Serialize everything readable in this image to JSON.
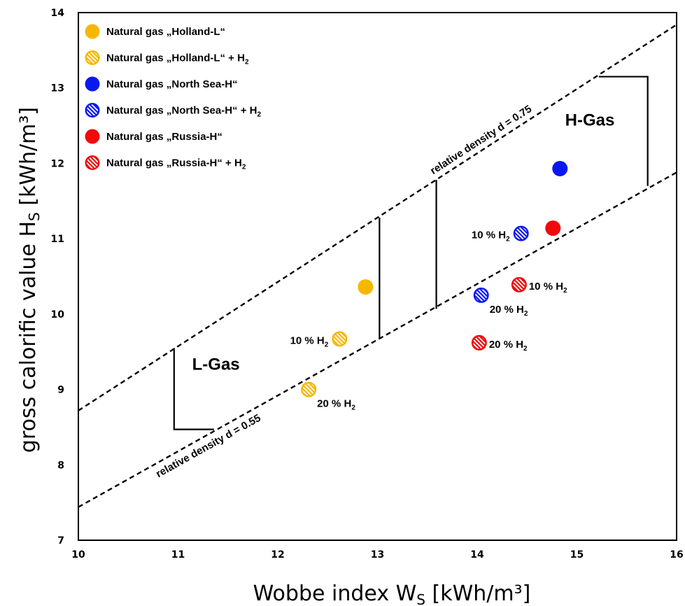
{
  "chart_data": {
    "type": "scatter",
    "xlabel": "Wobbe index W",
    "xlabel_sub": "S",
    "xlabel_unit": " [kWh/m³]",
    "ylabel": "gross calorific value H",
    "ylabel_sub": "S",
    "ylabel_unit": " [kWh/m³]",
    "xlim": [
      10,
      16
    ],
    "ylim": [
      7,
      14
    ],
    "x_ticks": [
      "10",
      "11",
      "12",
      "13",
      "14",
      "15",
      "16"
    ],
    "y_ticks": [
      "7",
      "8",
      "9",
      "10",
      "11",
      "12",
      "13",
      "14"
    ],
    "colors": {
      "holland": "#f5b800",
      "north_sea": "#0a18f0",
      "russia": "#f00a0a"
    },
    "legend": {
      "position": "top-left",
      "entries": [
        {
          "text": "Natural gas „Holland-L“",
          "sub": "",
          "color": "#f5b800",
          "hatched": false
        },
        {
          "text": "Natural gas „Holland-L“ + H",
          "sub": "2",
          "color": "#f5b800",
          "hatched": true
        },
        {
          "text": "Natural gas „North Sea-H“",
          "sub": "",
          "color": "#0a18f0",
          "hatched": false
        },
        {
          "text": "Natural gas „North Sea-H“ + H",
          "sub": "2",
          "color": "#0a18f0",
          "hatched": true
        },
        {
          "text": "Natural gas „Russia-H“",
          "sub": "",
          "color": "#f00a0a",
          "hatched": false
        },
        {
          "text": "Natural gas „Russia-H“ + H",
          "sub": "2",
          "color": "#f00a0a",
          "hatched": true
        }
      ]
    },
    "series": [
      {
        "name": "Natural gas „Holland-L“",
        "color": "#f5b800",
        "hatched": false,
        "points": [
          {
            "x": 12.88,
            "y": 10.36
          }
        ]
      },
      {
        "name": "Natural gas „Holland-L“ + H2",
        "color": "#f5b800",
        "hatched": true,
        "points": [
          {
            "x": 12.62,
            "y": 9.67,
            "label": "10 % H",
            "label_sub": "2",
            "label_side": "left"
          },
          {
            "x": 12.31,
            "y": 9.0,
            "label": "20 % H",
            "label_sub": "2",
            "label_side": "below-right"
          }
        ]
      },
      {
        "name": "Natural gas „North Sea-H“",
        "color": "#0a18f0",
        "hatched": false,
        "points": [
          {
            "x": 14.83,
            "y": 11.93
          }
        ]
      },
      {
        "name": "Natural gas „North Sea-H“ + H2",
        "color": "#0a18f0",
        "hatched": true,
        "points": [
          {
            "x": 14.44,
            "y": 11.07,
            "label": "10 % H",
            "label_sub": "2",
            "label_side": "left"
          },
          {
            "x": 14.04,
            "y": 10.25,
            "label": "20 % H",
            "label_sub": "2",
            "label_side": "below-right"
          }
        ]
      },
      {
        "name": "Natural gas „Russia-H“",
        "color": "#f00a0a",
        "hatched": false,
        "points": [
          {
            "x": 14.76,
            "y": 11.14
          }
        ]
      },
      {
        "name": "Natural gas „Russia-H“ + H2",
        "color": "#f00a0a",
        "hatched": true,
        "points": [
          {
            "x": 14.42,
            "y": 10.39,
            "label": "10 % H",
            "label_sub": "2",
            "label_side": "right"
          },
          {
            "x": 14.02,
            "y": 9.62,
            "label": "20 % H",
            "label_sub": "2",
            "label_side": "right"
          }
        ]
      }
    ],
    "reference_lines": [
      {
        "label": "relative density d = 0.75",
        "from": [
          10,
          8.72
        ],
        "to": [
          16,
          13.84
        ]
      },
      {
        "label": "relative density d = 0.55",
        "from": [
          10,
          7.44
        ],
        "to": [
          16,
          11.88
        ]
      }
    ],
    "boundaries": [
      [
        [
          10.96,
          9.55
        ],
        [
          10.96,
          8.47
        ],
        [
          11.36,
          8.47
        ]
      ],
      [
        [
          13.02,
          11.28
        ],
        [
          13.02,
          9.68
        ]
      ],
      [
        [
          13.59,
          11.78
        ],
        [
          13.59,
          10.07
        ]
      ],
      [
        [
          15.22,
          13.15
        ],
        [
          15.71,
          13.15
        ],
        [
          15.71,
          11.7
        ]
      ]
    ],
    "regions": [
      {
        "label": "L-Gas",
        "x": 11.38,
        "y": 9.26
      },
      {
        "label": "H-Gas",
        "x": 15.13,
        "y": 12.5
      }
    ]
  }
}
